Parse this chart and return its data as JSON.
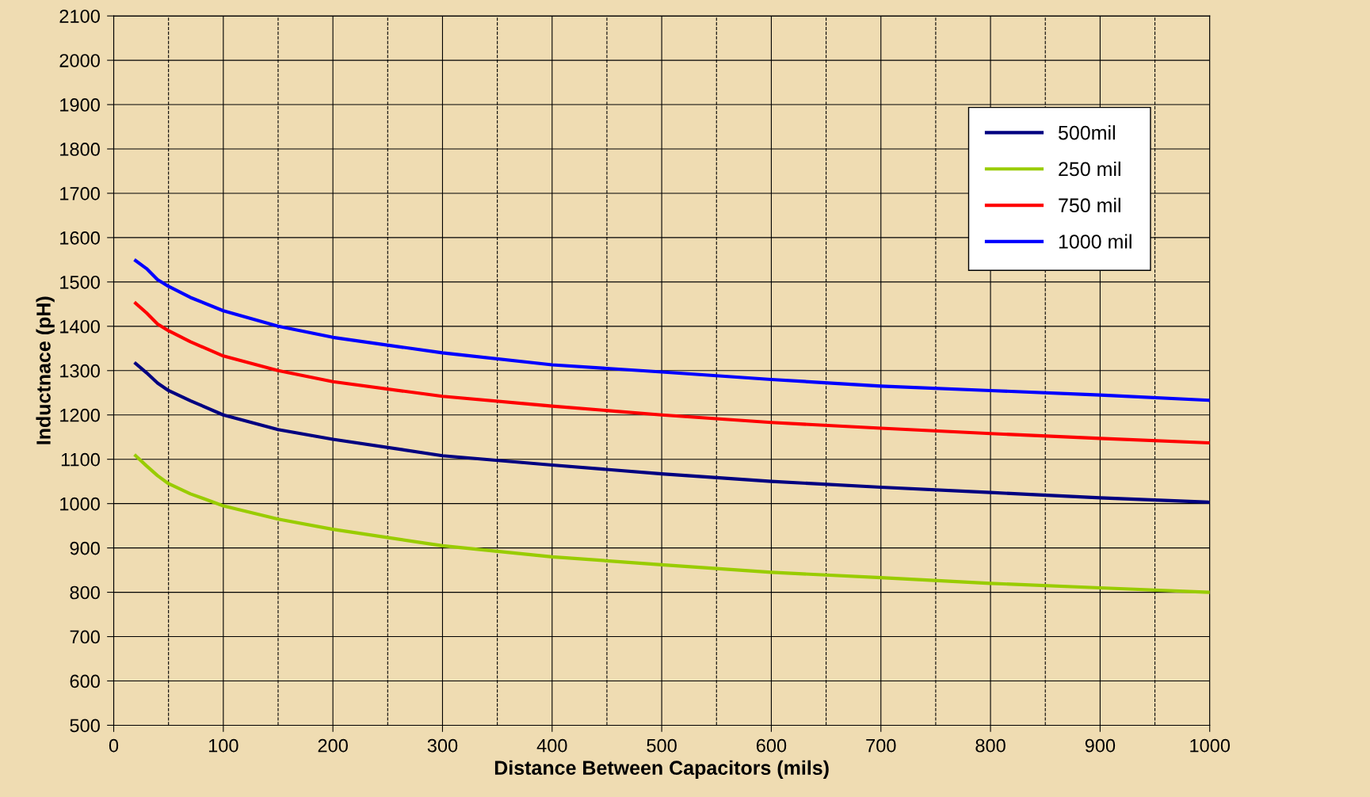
{
  "chart_data": {
    "type": "line",
    "xlabel": "Distance Between Capacitors (mils)",
    "ylabel": "Inductnace (pH)",
    "x": [
      20,
      30,
      40,
      50,
      70,
      100,
      150,
      200,
      300,
      400,
      500,
      600,
      700,
      800,
      900,
      1000
    ],
    "series": [
      {
        "name": "500mil",
        "color": "#000080",
        "values": [
          1316,
          1295,
          1272,
          1255,
          1232,
          1200,
          1167,
          1145,
          1108,
          1087,
          1067,
          1050,
          1037,
          1025,
          1013,
          1003
        ]
      },
      {
        "name": "250 mil",
        "color": "#99cc00",
        "values": [
          1108,
          1085,
          1063,
          1045,
          1022,
          995,
          965,
          942,
          905,
          880,
          862,
          845,
          833,
          820,
          810,
          800
        ]
      },
      {
        "name": "750 mil",
        "color": "#ff0000",
        "values": [
          1452,
          1430,
          1405,
          1390,
          1365,
          1333,
          1300,
          1275,
          1242,
          1220,
          1200,
          1183,
          1170,
          1158,
          1147,
          1137
        ]
      },
      {
        "name": "1000 mil",
        "color": "#0000ff",
        "values": [
          1548,
          1530,
          1505,
          1490,
          1465,
          1435,
          1400,
          1375,
          1340,
          1313,
          1297,
          1280,
          1265,
          1255,
          1245,
          1233
        ]
      }
    ],
    "xlim": [
      0,
      1000
    ],
    "xticks": [
      0,
      100,
      200,
      300,
      400,
      500,
      600,
      700,
      800,
      900,
      1000
    ],
    "ylim": [
      500,
      2100
    ],
    "yticks": [
      500,
      600,
      700,
      800,
      900,
      1000,
      1100,
      1200,
      1300,
      1400,
      1500,
      1600,
      1700,
      1800,
      1900,
      2000,
      2100
    ],
    "grid": true,
    "legend": "top right",
    "marker": "none",
    "line_style": "solid",
    "ref_lines": [
      {
        "axis": "x",
        "value": 50,
        "line_style": "dashed",
        "color": "#000000"
      },
      {
        "axis": "x",
        "value": 150,
        "line_style": "dashed",
        "color": "#000000"
      },
      {
        "axis": "x",
        "value": 250,
        "line_style": "dashed",
        "color": "#000000"
      },
      {
        "axis": "x",
        "value": 350,
        "line_style": "dashed",
        "color": "#000000"
      },
      {
        "axis": "x",
        "value": 450,
        "line_style": "dashed",
        "color": "#000000"
      },
      {
        "axis": "x",
        "value": 550,
        "line_style": "dashed",
        "color": "#000000"
      },
      {
        "axis": "x",
        "value": 650,
        "line_style": "dashed",
        "color": "#000000"
      },
      {
        "axis": "x",
        "value": 750,
        "line_style": "dashed",
        "color": "#000000"
      },
      {
        "axis": "x",
        "value": 850,
        "line_style": "dashed",
        "color": "#000000"
      },
      {
        "axis": "x",
        "value": 950,
        "line_style": "dashed",
        "color": "#000000"
      }
    ]
  }
}
